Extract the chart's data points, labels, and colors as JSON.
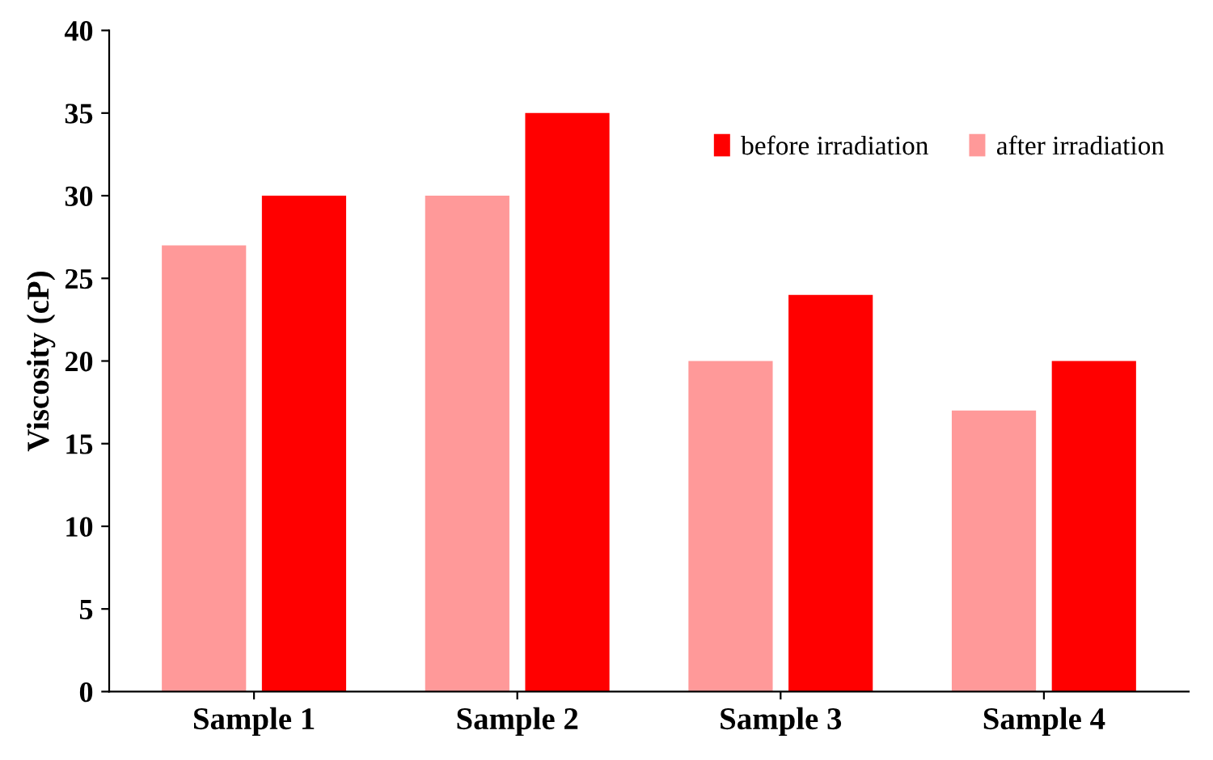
{
  "chart_data": {
    "type": "bar",
    "ylabel": "Viscosity (cP)",
    "categories": [
      "Sample 1",
      "Sample 2",
      "Sample 3",
      "Sample 4"
    ],
    "series": [
      {
        "name": "after irradiation",
        "color": "#ff9999",
        "values": [
          27,
          30,
          20,
          17
        ]
      },
      {
        "name": "before irradiation",
        "color": "#ff0000",
        "values": [
          30,
          35,
          24,
          20
        ]
      }
    ],
    "ylim": [
      0,
      40
    ],
    "yticks": [
      0,
      5,
      10,
      15,
      20,
      25,
      30,
      35,
      40
    ],
    "legend": "top right",
    "grid": false
  }
}
